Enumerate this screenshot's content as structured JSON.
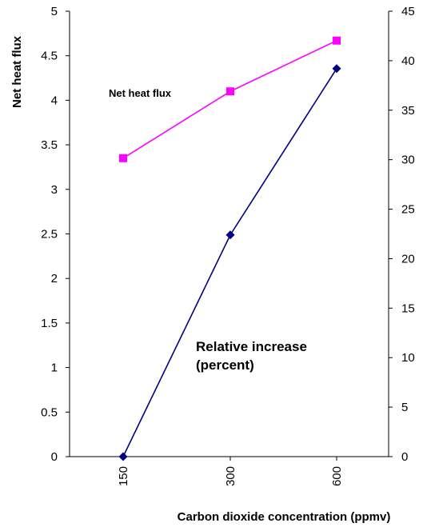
{
  "chart_data": {
    "type": "line",
    "categories": [
      "150",
      "300",
      "600"
    ],
    "xlabel": "Carbon dioxide concentration (ppmv)",
    "ylabel_left": "Net heat flux",
    "ylabel_right": "",
    "ylim_left": [
      0,
      5
    ],
    "ylim_right": [
      0,
      45
    ],
    "yticks_left": [
      "0",
      "0.5",
      "1",
      "1.5",
      "2",
      "2.5",
      "3",
      "3.5",
      "4",
      "4.5",
      "5"
    ],
    "yticks_right": [
      "0",
      "5",
      "10",
      "15",
      "20",
      "25",
      "30",
      "35",
      "40",
      "45"
    ],
    "grid": false,
    "legend": "none",
    "series": [
      {
        "name": "Net heat flux",
        "axis": "left",
        "color": "#ff00ff",
        "marker": "square",
        "values": [
          3.35,
          4.1,
          4.67
        ]
      },
      {
        "name": "Relative increase (percent)",
        "name_lines": [
          "Relative increase",
          "(percent)"
        ],
        "axis": "right",
        "color": "#000080",
        "marker": "diamond",
        "values": [
          0,
          22.4,
          39.2
        ]
      }
    ]
  }
}
